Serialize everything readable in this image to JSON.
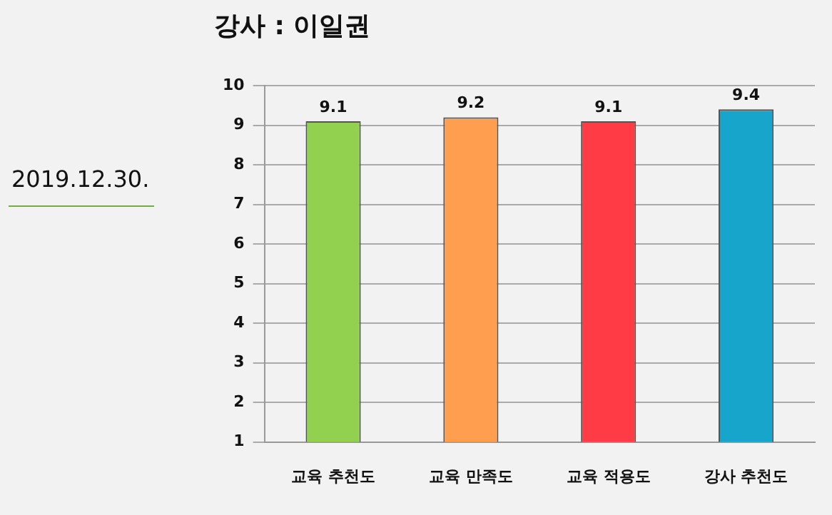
{
  "chart_data": {
    "type": "bar",
    "title": "강사 : 이일권",
    "categories": [
      "교육 추천도",
      "교육 만족도",
      "교육 적용도",
      "강사 추천도"
    ],
    "values": [
      9.1,
      9.2,
      9.1,
      9.4
    ],
    "colors": [
      "#92d050",
      "#ff9e4f",
      "#ff3b45",
      "#17a5cc"
    ],
    "ylim": [
      1,
      10
    ],
    "yticks": [
      1,
      2,
      3,
      4,
      5,
      6,
      7,
      8,
      9,
      10
    ],
    "grid": "y",
    "data_labels": true,
    "annotations": [
      "2019.12.30."
    ]
  }
}
